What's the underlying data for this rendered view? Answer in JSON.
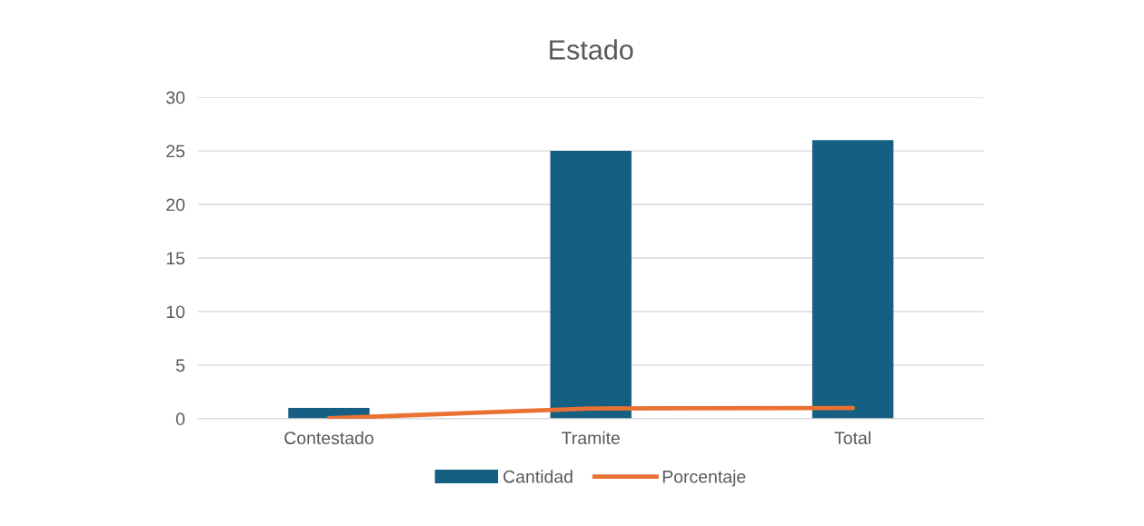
{
  "chart_data": {
    "type": "bar",
    "title": "Estado",
    "categories": [
      "Contestado",
      "Tramite",
      "Total"
    ],
    "series": [
      {
        "name": "Cantidad",
        "color": "#156082",
        "values": [
          1,
          25,
          26
        ]
      },
      {
        "name": "Porcentaje",
        "type": "line",
        "color": "#e97132",
        "values": [
          0.04,
          0.96,
          1
        ]
      }
    ],
    "ylim": [
      0,
      30
    ],
    "yticks": [
      0,
      5,
      10,
      15,
      20,
      25,
      30
    ],
    "grid": "y",
    "legend": "bottom",
    "marker": "none",
    "line_style": "solid"
  }
}
